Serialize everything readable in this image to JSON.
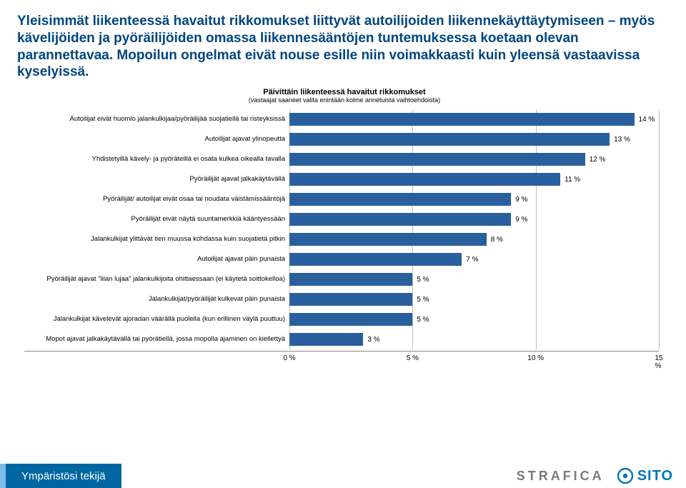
{
  "intro_text": "Yleisimmät liikenteessä havaitut rikkomukset liittyvät autoilijoiden liikennekäyttäytymiseen – myös kävelijöiden ja pyöräilijöiden omassa liikennesääntöjen tuntemuksessa koetaan olevan parannettavaa. Mopoilun ongelmat eivät nouse esille niin voimakkaasti kuin yleensä vastaavissa kyselyissä.",
  "intro_color": "#00467e",
  "chart": {
    "type": "bar_horizontal",
    "title": "Päivittäin liikenteessä havaitut rikkomukset",
    "subtitle": "(vastaajat saaneet valita enintään kolme annetuista vaihtoehdoista)",
    "bar_color": "#2a5f9e",
    "grid_color": "#bfbfbf",
    "background_color": "#ffffff",
    "label_fontsize": 9.5,
    "xlim": [
      0,
      15
    ],
    "xtick_step": 5,
    "xtick_suffix": " %",
    "categories": [
      "Autoilijat eivät huomio jalankulkijaa/pyöräilijää suojatiellä tai risteyksissä",
      "Autoilijat ajavat ylinopeutta",
      "Yhdistetyillä kävely- ja pyöräteillä ei osata kulkea oikealla tavalla",
      "Pyöräilijät ajavat jalkakäytävällä",
      "Pyöräilijät/ autoilijat eivät osaa tai noudata väistämissääntöjä",
      "Pyöräilijät eivät näytä suuntamerkkiä kääntyessään",
      "Jalankulkijat ylittävät tien muussa kohdassa kuin suojatietä pitkin",
      "Autoilijat ajavat päin punaista",
      "Pyöräilijät ajavat \"liian lujaa\" jalankulkijoita ohittaessaan (ei käytetä soittokelloa)",
      "Jalankulkijat/pyöräilijät kulkevat päin punaista",
      "Jalankulkijat kävelevät ajoradan väärällä puolella (kun erillinen väylä puuttuu)",
      "Mopot ajavat jalkakäytävällä tai pyörätiellä, jossa mopolla ajaminen on kiellettyä"
    ],
    "values": [
      14,
      13,
      12,
      11,
      9,
      9,
      8,
      7,
      5,
      5,
      5,
      3
    ],
    "value_suffix": " %"
  },
  "footer": {
    "tag": "Ympäristösi tekijä",
    "tag_bg": "#0066a1",
    "tag_accent": "#7bbde8",
    "strafica": "STRAFICA",
    "sito": "SITO",
    "sito_color": "#0076b6"
  }
}
